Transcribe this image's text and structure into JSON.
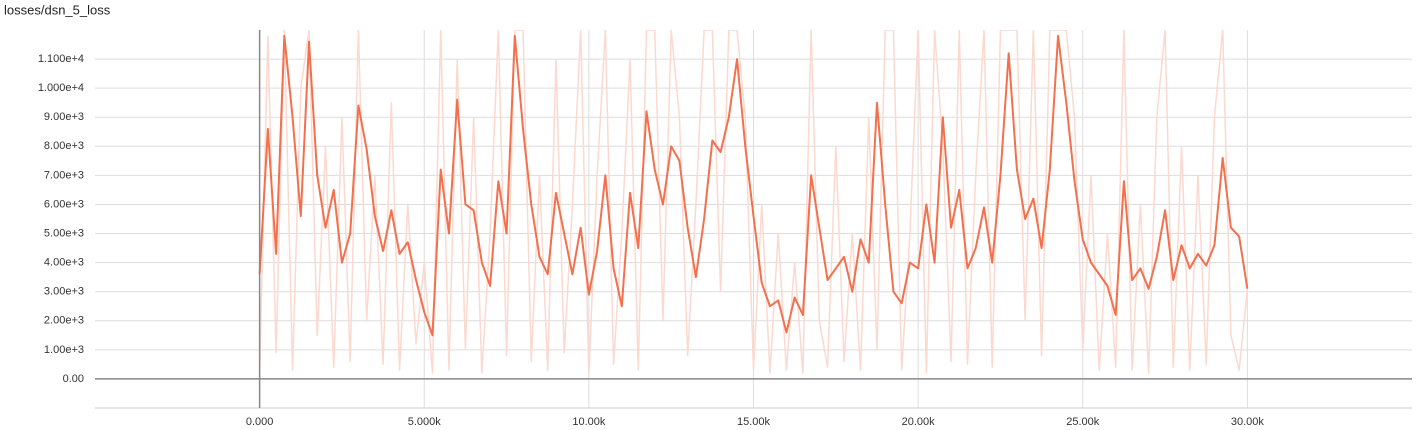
{
  "chart_data": {
    "type": "line",
    "title": "losses/dsn_5_loss",
    "x": [
      0,
      250,
      500,
      750,
      1000,
      1250,
      1500,
      1750,
      2000,
      2250,
      2500,
      2750,
      3000,
      3250,
      3500,
      3750,
      4000,
      4250,
      4500,
      4750,
      5000,
      5250,
      5500,
      5750,
      6000,
      6250,
      6500,
      6750,
      7000,
      7250,
      7500,
      7750,
      8000,
      8250,
      8500,
      8750,
      9000,
      9250,
      9500,
      9750,
      10000,
      10250,
      10500,
      10750,
      11000,
      11250,
      11500,
      11750,
      12000,
      12250,
      12500,
      12750,
      13000,
      13250,
      13500,
      13750,
      14000,
      14250,
      14500,
      14750,
      15000,
      15250,
      15500,
      15750,
      16000,
      16250,
      16500,
      16750,
      17000,
      17250,
      17500,
      17750,
      18000,
      18250,
      18500,
      18750,
      19000,
      19250,
      19500,
      19750,
      20000,
      20250,
      20500,
      20750,
      21000,
      21250,
      21500,
      21750,
      22000,
      22250,
      22500,
      22750,
      23000,
      23250,
      23500,
      23750,
      24000,
      24250,
      24500,
      24750,
      25000,
      25250,
      25500,
      25750,
      26000,
      26250,
      26500,
      26750,
      27000,
      27250,
      27500,
      27750,
      28000,
      28250,
      28500,
      28750,
      29000,
      29250,
      29500,
      29750,
      30000
    ],
    "series": [
      {
        "color": "#fbd9cf",
        "values": [
          200,
          11800,
          900,
          12000,
          300,
          10000,
          12000,
          1500,
          8000,
          400,
          9000,
          600,
          12000,
          2000,
          7000,
          500,
          9500,
          300,
          6000,
          1200,
          4000,
          200,
          12000,
          300,
          11000,
          1000,
          9000,
          200,
          5000,
          12000,
          800,
          12000,
          12000,
          600,
          7000,
          300,
          11000,
          900,
          6000,
          12000,
          200,
          7000,
          12000,
          500,
          5000,
          11000,
          300,
          12000,
          12000,
          2000,
          12000,
          9000,
          800,
          6000,
          12000,
          12000,
          3000,
          12000,
          12000,
          9000,
          300,
          6000,
          200,
          5000,
          300,
          4000,
          200,
          12000,
          2000,
          400,
          8000,
          600,
          5000,
          300,
          9000,
          1000,
          12000,
          12000,
          300,
          5000,
          12000,
          200,
          12000,
          8000,
          600,
          12000,
          500,
          7000,
          12000,
          400,
          12000,
          12000,
          12000,
          2000,
          12000,
          800,
          12000,
          12000,
          12000,
          9000,
          1000,
          7000,
          300,
          5000,
          400,
          12000,
          300,
          6000,
          200,
          9000,
          12000,
          400,
          8000,
          300,
          7000,
          500,
          9000,
          12000,
          1500,
          300,
          3100
        ]
      },
      {
        "color": "#f4704d",
        "values": [
          3600,
          8600,
          4300,
          11800,
          9000,
          5600,
          11600,
          7000,
          5200,
          6500,
          4000,
          5000,
          9400,
          7900,
          5600,
          4400,
          5800,
          4300,
          4700,
          3400,
          2300,
          1500,
          7200,
          5000,
          9600,
          6000,
          5800,
          4000,
          3200,
          6800,
          5000,
          11800,
          8600,
          6000,
          4200,
          3600,
          6400,
          5000,
          3600,
          5200,
          2900,
          4400,
          7000,
          3800,
          2500,
          6400,
          4500,
          9200,
          7200,
          6000,
          8000,
          7500,
          5200,
          3500,
          5500,
          8200,
          7800,
          9000,
          11000,
          8000,
          5600,
          3300,
          2500,
          2700,
          1600,
          2800,
          2200,
          7000,
          5200,
          3400,
          3800,
          4200,
          3000,
          4800,
          4000,
          9500,
          6000,
          3000,
          2600,
          4000,
          3800,
          6000,
          4000,
          9000,
          5200,
          6500,
          3800,
          4500,
          5900,
          4000,
          7000,
          11200,
          7200,
          5500,
          6200,
          4500,
          7200,
          11800,
          9500,
          6800,
          4800,
          4000,
          3600,
          3200,
          2200,
          6800,
          3400,
          3800,
          3100,
          4200,
          5800,
          3400,
          4600,
          3800,
          4300,
          3900,
          4600,
          7600,
          5200,
          4900,
          3100
        ]
      }
    ],
    "xlim": [
      -5000,
      35000
    ],
    "xticks": [
      {
        "value": 0,
        "label": "0.000"
      },
      {
        "value": 5000,
        "label": "5.000k"
      },
      {
        "value": 10000,
        "label": "10.00k"
      },
      {
        "value": 15000,
        "label": "15.00k"
      },
      {
        "value": 20000,
        "label": "20.00k"
      },
      {
        "value": 25000,
        "label": "25.00k"
      },
      {
        "value": 30000,
        "label": "30.00k"
      }
    ],
    "ylim": [
      -1000,
      12000
    ],
    "yticks": [
      {
        "value": 0,
        "label": "0.00"
      },
      {
        "value": 1000,
        "label": "1.00e+3"
      },
      {
        "value": 2000,
        "label": "2.00e+3"
      },
      {
        "value": 3000,
        "label": "3.00e+3"
      },
      {
        "value": 4000,
        "label": "4.00e+3"
      },
      {
        "value": 5000,
        "label": "5.00e+3"
      },
      {
        "value": 6000,
        "label": "6.00e+3"
      },
      {
        "value": 7000,
        "label": "7.00e+3"
      },
      {
        "value": 8000,
        "label": "8.00e+3"
      },
      {
        "value": 9000,
        "label": "9.00e+3"
      },
      {
        "value": 10000,
        "label": "1.000e+4"
      },
      {
        "value": 11000,
        "label": "1.100e+4"
      }
    ],
    "grid": true
  }
}
